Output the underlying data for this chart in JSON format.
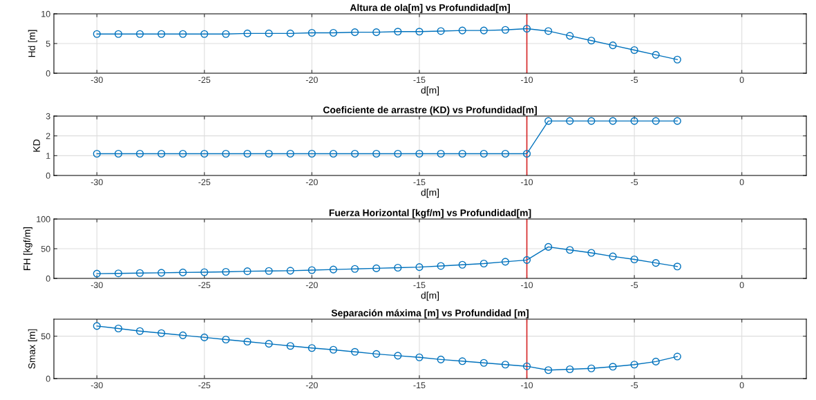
{
  "chart_data": [
    {
      "type": "line",
      "title": "Altura de ola[m] vs Profundidad[m]",
      "xlabel": "d[m]",
      "ylabel": "Hd [m]",
      "x": [
        -30,
        -29,
        -28,
        -27,
        -26,
        -25,
        -24,
        -23,
        -22,
        -21,
        -20,
        -19,
        -18,
        -17,
        -16,
        -15,
        -14,
        -13,
        -12,
        -11,
        -10,
        -9,
        -8,
        -7,
        -6,
        -5,
        -4,
        -3
      ],
      "series": [
        {
          "color": "#0072bd",
          "values": [
            6.6,
            6.6,
            6.6,
            6.6,
            6.6,
            6.6,
            6.6,
            6.7,
            6.7,
            6.7,
            6.8,
            6.8,
            6.9,
            6.9,
            7.0,
            7.0,
            7.1,
            7.2,
            7.2,
            7.3,
            7.5,
            7.1,
            6.3,
            5.5,
            4.7,
            3.9,
            3.1,
            2.3
          ]
        }
      ],
      "xlim": [
        -32,
        3
      ],
      "xticks": [
        -30,
        -25,
        -20,
        -15,
        -10,
        -5,
        0
      ],
      "ylim": [
        0,
        10
      ],
      "yticks": [
        0,
        5,
        10
      ],
      "grid": true,
      "marker": "circle",
      "line_style": "solid",
      "ref_lines": [
        {
          "axis": "x",
          "value": -10,
          "color": "#d62728"
        }
      ]
    },
    {
      "type": "line",
      "title": "Coeficiente de arrastre (KD) vs Profundidad[m]",
      "xlabel": "d[m]",
      "ylabel": "KD",
      "x": [
        -30,
        -29,
        -28,
        -27,
        -26,
        -25,
        -24,
        -23,
        -22,
        -21,
        -20,
        -19,
        -18,
        -17,
        -16,
        -15,
        -14,
        -13,
        -12,
        -11,
        -10,
        -9,
        -8,
        -7,
        -6,
        -5,
        -4,
        -3
      ],
      "series": [
        {
          "color": "#0072bd",
          "values": [
            1.1,
            1.1,
            1.1,
            1.1,
            1.1,
            1.1,
            1.1,
            1.1,
            1.1,
            1.1,
            1.1,
            1.1,
            1.1,
            1.1,
            1.1,
            1.1,
            1.1,
            1.1,
            1.1,
            1.1,
            1.1,
            2.75,
            2.75,
            2.75,
            2.75,
            2.75,
            2.75,
            2.75
          ]
        }
      ],
      "xlim": [
        -32,
        3
      ],
      "xticks": [
        -30,
        -25,
        -20,
        -15,
        -10,
        -5,
        0
      ],
      "ylim": [
        0,
        3
      ],
      "yticks": [
        0,
        1,
        2,
        3
      ],
      "grid": true,
      "marker": "circle",
      "line_style": "solid",
      "ref_lines": [
        {
          "axis": "x",
          "value": -10,
          "color": "#d62728"
        }
      ]
    },
    {
      "type": "line",
      "title": "Fuerza Horizontal [kgf/m] vs Profundidad[m]",
      "xlabel": "d[m]",
      "ylabel": "FH [kgf/m]",
      "x": [
        -30,
        -29,
        -28,
        -27,
        -26,
        -25,
        -24,
        -23,
        -22,
        -21,
        -20,
        -19,
        -18,
        -17,
        -16,
        -15,
        -14,
        -13,
        -12,
        -11,
        -10,
        -9,
        -8,
        -7,
        -6,
        -5,
        -4,
        -3
      ],
      "series": [
        {
          "color": "#0072bd",
          "values": [
            8,
            8.5,
            9,
            9.5,
            10,
            10.5,
            11,
            12,
            12.5,
            13,
            14,
            15,
            16,
            17,
            18,
            19,
            21,
            23,
            25,
            28,
            31,
            53,
            48,
            43,
            37,
            32,
            26,
            20
          ]
        }
      ],
      "xlim": [
        -32,
        3
      ],
      "xticks": [
        -30,
        -25,
        -20,
        -15,
        -10,
        -5,
        0
      ],
      "ylim": [
        0,
        100
      ],
      "yticks": [
        0,
        50,
        100
      ],
      "grid": true,
      "marker": "circle",
      "line_style": "solid",
      "ref_lines": [
        {
          "axis": "x",
          "value": -10,
          "color": "#d62728"
        }
      ]
    },
    {
      "type": "line",
      "title": "Separación máxima [m] vs Profundidad [m]",
      "ylabel": "Smax [m]",
      "x": [
        -30,
        -29,
        -28,
        -27,
        -26,
        -25,
        -24,
        -23,
        -22,
        -21,
        -20,
        -19,
        -18,
        -17,
        -16,
        -15,
        -14,
        -13,
        -12,
        -11,
        -10,
        -9,
        -8,
        -7,
        -6,
        -5,
        -4,
        -3
      ],
      "series": [
        {
          "color": "#0072bd",
          "values": [
            62,
            59,
            56,
            53.5,
            51,
            48.5,
            46,
            43.5,
            41,
            38.5,
            36,
            34,
            31.5,
            29,
            27,
            25,
            22.5,
            20.5,
            18.5,
            16.5,
            14.5,
            10,
            11,
            12,
            14,
            16.5,
            20,
            26
          ]
        }
      ],
      "xlim": [
        -32,
        3
      ],
      "xticks": [
        -30,
        -25,
        -20,
        -15,
        -10,
        -5,
        0
      ],
      "ylim": [
        0,
        70
      ],
      "yticks": [
        0,
        50
      ],
      "grid": true,
      "marker": "circle",
      "line_style": "solid",
      "ref_lines": [
        {
          "axis": "x",
          "value": -10,
          "color": "#d62728"
        }
      ]
    }
  ]
}
